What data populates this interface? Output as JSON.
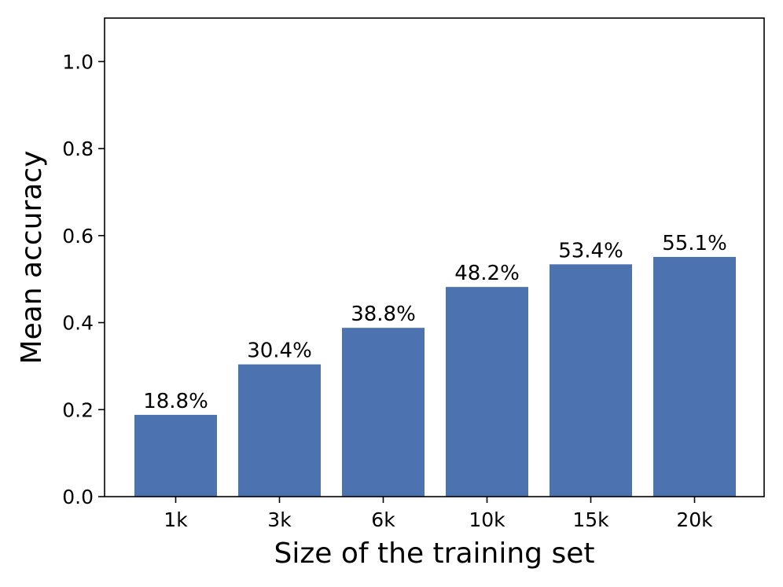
{
  "chart_data": {
    "type": "bar",
    "categories": [
      "1k",
      "3k",
      "6k",
      "10k",
      "15k",
      "20k"
    ],
    "values": [
      0.188,
      0.304,
      0.388,
      0.482,
      0.534,
      0.551
    ],
    "data_labels": [
      "18.8%",
      "30.4%",
      "38.8%",
      "48.2%",
      "53.4%",
      "55.1%"
    ],
    "title": "",
    "xlabel": "Size of the training set",
    "ylabel": "Mean accuracy",
    "ylim": [
      0,
      1.1
    ],
    "yticks": [
      0.0,
      0.2,
      0.4,
      0.6,
      0.8,
      1.0
    ],
    "ytick_labels": [
      "0.0",
      "0.2",
      "0.4",
      "0.6",
      "0.8",
      "1.0"
    ],
    "grid": false,
    "legend": "none",
    "bar_color": "#4c72b0"
  }
}
